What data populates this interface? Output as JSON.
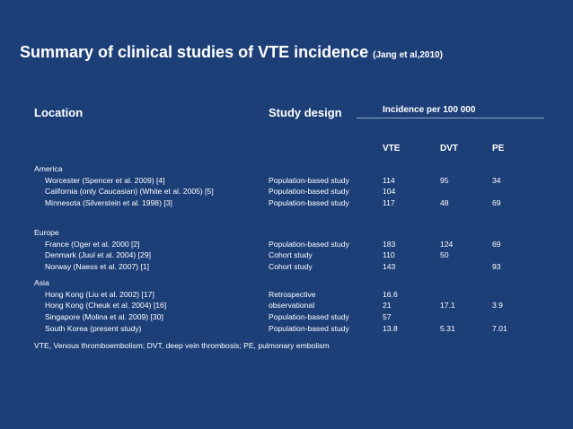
{
  "title": {
    "main": "Summary of clinical studies of VTE  incidence",
    "cite": "(Jang et al,2010)"
  },
  "headers": {
    "location": "Location",
    "design": "Study design",
    "incidence": "Incidence per 100 000",
    "vte": "VTE",
    "dvt": "DVT",
    "pe": "PE"
  },
  "groups": [
    {
      "name": "America",
      "rows": [
        {
          "location": "Worcester (Spencer et al. 2009) [4]",
          "design": "Population-based study",
          "vte": "114",
          "dvt": "95",
          "pe": "34"
        },
        {
          "location": "California (only Caucasian) (White et al. 2005) [5]",
          "design": "Population-based study",
          "vte": "104",
          "dvt": "",
          "pe": ""
        },
        {
          "location": "Minnesota (Silverstein et al. 1998) [3]",
          "design": "Population-based study",
          "vte": "117",
          "dvt": "48",
          "pe": "69"
        }
      ]
    },
    {
      "name": "Europe",
      "rows": [
        {
          "location": "France (Oger et al. 2000 [2]",
          "design": "Population-based study",
          "vte": "183",
          "dvt": "124",
          "pe": "69"
        },
        {
          "location": "Denmark (Juul et al. 2004) [29]",
          "design": "Cohort study",
          "vte": "110",
          "dvt": "50",
          "pe": ""
        },
        {
          "location": "Norway (Naess et al. 2007) [1]",
          "design": "Cohort study",
          "vte": "143",
          "dvt": "",
          "pe": "93"
        }
      ]
    },
    {
      "name": "Asia",
      "rows": [
        {
          "location": "Hong Kong (Liu et al. 2002) [17]",
          "design": "Retrospective",
          "vte": "16.6",
          "dvt": "",
          "pe": ""
        },
        {
          "location": "Hong  Kong (Cheuk et al. 2004) [16]",
          "design": "observational",
          "vte": "21",
          "dvt": "17.1",
          "pe": "3.9"
        },
        {
          "location": "Singapore (Molina et al. 2009) [30]",
          "design": "Population-based study",
          "vte": "57",
          "dvt": "",
          "pe": ""
        },
        {
          "location": "South Korea (present study)",
          "design": "Population-based study",
          "vte": "13.8",
          "dvt": "5.31",
          "pe": "7.01"
        }
      ]
    }
  ],
  "footnote": "VTE, Venous thromboembolism; DVT, deep vein thrombosis; PE, pulmonary embolism"
}
